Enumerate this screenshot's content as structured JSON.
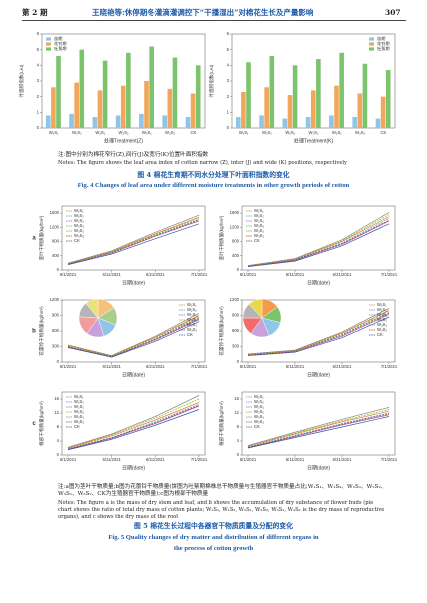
{
  "header": {
    "issue": "第 2 期",
    "title": "王晓艳等:休停期冬灌滴灌调控下“干播湿出”对棉花生长及产量影响",
    "page": "307"
  },
  "figure4": {
    "note_cn": "注:图中分别为棉花窄行(Z),间行(J)及宽行(K)位置叶面积指数",
    "note_en": "Notes: The figure shows the leaf area index of cotton narrow (Z), inter (J) and wide (K) positions, respectively",
    "caption_cn": "图 4   棉花生育期不同水分处理下叶面积指数的变化",
    "caption_en": "Fig. 4   Changes of leaf area under different moisture treatments in other growth periods of cotton"
  },
  "figure5": {
    "note_cn": "注:a图为茎叶干物质量;b图为花蕾铃干物质量(饼图为吐絮期棉株总干物质量与生殖器官干物质量占比;W₁S₁、W₁S₂、W₂S₁、W₂S₂、W₃S₁、W₃S₂、CK为生殖器官干物质量);c图为根部干物质量",
    "note_en": "Notes: The figure a is the mass of dry stem and leaf, and b shows the accumulation of dry substance of flower buds (pie chart shows the ratio of total dry mass of cotton plants; W₁S₁, W₁S₂, W₂S₁, W₂S₂, W₃S₁, W₃S₂ is the dry mass of reproductive organs), and c shows the dry mass of the root",
    "caption_cn": "图 5   棉花生长过程中各器官干物质质量及分配的变化",
    "caption_en_1": "Fig. 5   Quality changes of dry matter and distribution of different organs in",
    "caption_en_2": "the process of cotton growth"
  },
  "chart_data": [
    {
      "type": "bar",
      "ylabel": "叶面积指数(LAI)",
      "xlabel": "处理Treatment(Z)",
      "legend": "upper left",
      "categories": [
        "W₁S₁",
        "W₁S₂",
        "W₂S₁",
        "W₂S₂",
        "W₃S₁",
        "W₃S₂",
        "CK"
      ],
      "series": [
        {
          "name": "苗期",
          "color": "#8ec5e8",
          "values": [
            0.8,
            0.9,
            0.7,
            0.8,
            0.9,
            0.8,
            0.7
          ]
        },
        {
          "name": "花铃期",
          "color": "#f2a65a",
          "values": [
            2.6,
            2.9,
            2.4,
            2.7,
            3.0,
            2.5,
            2.2
          ]
        },
        {
          "name": "吐絮期",
          "color": "#7cc36e",
          "values": [
            4.6,
            5.0,
            4.3,
            4.8,
            5.2,
            4.5,
            4.0
          ]
        }
      ],
      "ylim": [
        0,
        6
      ],
      "yticks": [
        0,
        1,
        2,
        3,
        4,
        5,
        6
      ]
    },
    {
      "type": "bar",
      "ylabel": "叶面积指数(LAI)",
      "xlabel": "处理Treatment(K)",
      "legend": "upper right",
      "categories": [
        "W₁S₁",
        "W₁S₂",
        "W₂S₁",
        "W₂S₂",
        "W₃S₁",
        "W₃S₂",
        "CK"
      ],
      "series": [
        {
          "name": "苗期",
          "color": "#8ec5e8",
          "values": [
            0.7,
            0.8,
            0.6,
            0.7,
            0.8,
            0.7,
            0.6
          ]
        },
        {
          "name": "花铃期",
          "color": "#f2a65a",
          "values": [
            2.3,
            2.6,
            2.1,
            2.4,
            2.7,
            2.2,
            2.0
          ]
        },
        {
          "name": "吐絮期",
          "color": "#7cc36e",
          "values": [
            4.2,
            4.6,
            4.0,
            4.4,
            4.8,
            4.1,
            3.7
          ]
        }
      ],
      "ylim": [
        0,
        6
      ],
      "yticks": [
        0,
        1,
        2,
        3,
        4,
        5,
        6
      ]
    },
    {
      "type": "line",
      "panel": "a",
      "ylabel": "茎叶干物质量(kg/hm²)",
      "xlabel": "日期(date)",
      "legend": "upper left",
      "categories": [
        "6/1/2021",
        "6/11/2021",
        "6/21/2021",
        "7/1/2021"
      ],
      "series": [
        {
          "name": "W₁S₁",
          "color": "#e07b39",
          "values": [
            180,
            520,
            1020,
            1480
          ]
        },
        {
          "name": "W₁S₂",
          "color": "#4a90d9",
          "values": [
            170,
            500,
            980,
            1420
          ]
        },
        {
          "name": "W₂S₁",
          "color": "#9b59b6",
          "values": [
            160,
            480,
            950,
            1380
          ]
        },
        {
          "name": "W₂S₂",
          "color": "#7fb800",
          "values": [
            175,
            510,
            1000,
            1460
          ]
        },
        {
          "name": "W₃S₁",
          "color": "#888888",
          "values": [
            190,
            540,
            1060,
            1540
          ]
        },
        {
          "name": "W₃S₂",
          "color": "#c0392b",
          "values": [
            165,
            490,
            960,
            1400
          ]
        },
        {
          "name": "CK",
          "color": "#2c5aa0",
          "values": [
            150,
            450,
            880,
            1300
          ]
        }
      ],
      "ylim": [
        0,
        1800
      ],
      "yticks": [
        0,
        400,
        800,
        1200,
        1600
      ]
    },
    {
      "type": "line",
      "ylabel": "茎叶干物质量(kg/hm²)",
      "xlabel": "日期(date)",
      "legend": "upper left",
      "categories": [
        "6/1/2021",
        "6/11/2021",
        "6/21/2021",
        "7/1/2021"
      ],
      "series": [
        {
          "name": "W₁S₁",
          "color": "#e07b39",
          "values": [
            120,
            300,
            800,
            1500
          ]
        },
        {
          "name": "W₁S₂",
          "color": "#4a90d9",
          "values": [
            110,
            290,
            760,
            1450
          ]
        },
        {
          "name": "W₂S₁",
          "color": "#9b59b6",
          "values": [
            100,
            270,
            720,
            1380
          ]
        },
        {
          "name": "W₂S₂",
          "color": "#7fb800",
          "values": [
            115,
            310,
            820,
            1560
          ]
        },
        {
          "name": "W₃S₁",
          "color": "#888888",
          "values": [
            125,
            320,
            850,
            1620
          ]
        },
        {
          "name": "W₃S₂",
          "color": "#c0392b",
          "values": [
            105,
            280,
            740,
            1400
          ]
        },
        {
          "name": "CK",
          "color": "#2c5aa0",
          "values": [
            95,
            250,
            680,
            1300
          ]
        }
      ],
      "ylim": [
        0,
        1800
      ],
      "yticks": [
        0,
        400,
        800,
        1200,
        1600
      ]
    },
    {
      "type": "line",
      "panel": "b",
      "ylabel": "花蕾铃干物质量(kg/hm²)",
      "xlabel": "日期(date)",
      "legend": "upper right",
      "categories": [
        "6/1/2021",
        "6/11/2021",
        "6/21/2021",
        "7/1/2021"
      ],
      "series": [
        {
          "name": "W₁S₁",
          "color": "#e07b39",
          "values": [
            320,
            120,
            480,
            900
          ]
        },
        {
          "name": "W₁S₂",
          "color": "#4a90d9",
          "values": [
            300,
            110,
            450,
            860
          ]
        },
        {
          "name": "W₂S₁",
          "color": "#9b59b6",
          "values": [
            290,
            100,
            430,
            820
          ]
        },
        {
          "name": "W₂S₂",
          "color": "#7fb800",
          "values": [
            310,
            115,
            470,
            880
          ]
        },
        {
          "name": "W₃S₁",
          "color": "#888888",
          "values": [
            330,
            125,
            500,
            940
          ]
        },
        {
          "name": "W₃S₂",
          "color": "#c0392b",
          "values": [
            295,
            105,
            440,
            840
          ]
        },
        {
          "name": "CK",
          "color": "#2c5aa0",
          "values": [
            280,
            95,
            400,
            780
          ]
        }
      ],
      "ylim": [
        0,
        1200
      ],
      "yticks": [
        0,
        300,
        600,
        900,
        1200
      ]
    },
    {
      "type": "pie",
      "colors": [
        "#f4c27a",
        "#a8d08d",
        "#8ec5e8",
        "#c9a0dc",
        "#f29c9c",
        "#b5b5b5",
        "#e8e27a"
      ],
      "values": [
        16,
        15,
        14,
        15,
        16,
        13,
        11
      ]
    },
    {
      "type": "line",
      "ylabel": "花蕾铃干物质量(kg/hm²)",
      "xlabel": "日期(date)",
      "legend": "upper right",
      "categories": [
        "6/1/2021",
        "6/11/2021",
        "6/21/2021",
        "7/1/2021"
      ],
      "series": [
        {
          "name": "W₁S₁",
          "color": "#e07b39",
          "values": [
            150,
            220,
            560,
            1000
          ]
        },
        {
          "name": "W₁S₂",
          "color": "#4a90d9",
          "values": [
            140,
            210,
            530,
            960
          ]
        },
        {
          "name": "W₂S₁",
          "color": "#9b59b6",
          "values": [
            130,
            200,
            500,
            920
          ]
        },
        {
          "name": "W₂S₂",
          "color": "#7fb800",
          "values": [
            145,
            215,
            550,
            990
          ]
        },
        {
          "name": "W₃S₁",
          "color": "#888888",
          "values": [
            155,
            230,
            580,
            1040
          ]
        },
        {
          "name": "W₃S₂",
          "color": "#c0392b",
          "values": [
            135,
            205,
            520,
            940
          ]
        },
        {
          "name": "CK",
          "color": "#2c5aa0",
          "values": [
            125,
            190,
            470,
            870
          ]
        }
      ],
      "ylim": [
        0,
        1200
      ],
      "yticks": [
        0,
        300,
        600,
        900,
        1200
      ]
    },
    {
      "type": "pie",
      "colors": [
        "#f29c4a",
        "#7cc36e",
        "#8ec5e8",
        "#c9a0dc",
        "#f26c6c",
        "#b5b5b5",
        "#e8d84a"
      ],
      "values": [
        15,
        14,
        15,
        16,
        15,
        13,
        12
      ]
    },
    {
      "type": "line",
      "panel": "c",
      "ylabel": "根部干物质量(kg/hm²)",
      "xlabel": "日期(date)",
      "legend": "upper left",
      "categories": [
        "6/1/2021",
        "6/11/2021",
        "6/21/2021",
        "7/1/2021"
      ],
      "series": [
        {
          "name": "W₁S₁",
          "color": "#e07b39",
          "values": [
            2,
            5.5,
            10,
            15
          ]
        },
        {
          "name": "W₁S₂",
          "color": "#4a90d9",
          "values": [
            1.8,
            5,
            9.5,
            14.5
          ]
        },
        {
          "name": "W₂S₁",
          "color": "#9b59b6",
          "values": [
            1.6,
            4.8,
            9,
            14
          ]
        },
        {
          "name": "W₂S₂",
          "color": "#7fb800",
          "values": [
            2.1,
            5.8,
            10.5,
            16
          ]
        },
        {
          "name": "W₃S₁",
          "color": "#888888",
          "values": [
            2.2,
            6,
            11,
            17
          ]
        },
        {
          "name": "W₃S₂",
          "color": "#c0392b",
          "values": [
            1.7,
            4.9,
            9.2,
            14.2
          ]
        },
        {
          "name": "CK",
          "color": "#2c5aa0",
          "values": [
            1.5,
            4.5,
            8.5,
            13
          ]
        }
      ],
      "ylim": [
        0,
        18
      ],
      "yticks": [
        0,
        4,
        8,
        12,
        16
      ]
    },
    {
      "type": "line",
      "ylabel": "根部干物质量(kg/hm²)",
      "xlabel": "日期(date)",
      "legend": "upper left",
      "categories": [
        "6/1/2021",
        "6/11/2021",
        "6/21/2021",
        "7/1/2021"
      ],
      "series": [
        {
          "name": "W₁S₁",
          "color": "#e07b39",
          "values": [
            2.5,
            6,
            9.5,
            12.5
          ]
        },
        {
          "name": "W₁S₂",
          "color": "#4a90d9",
          "values": [
            2.3,
            5.6,
            9,
            12
          ]
        },
        {
          "name": "W₂S₁",
          "color": "#9b59b6",
          "values": [
            2.1,
            5.3,
            8.6,
            11.5
          ]
        },
        {
          "name": "W₂S₂",
          "color": "#7fb800",
          "values": [
            2.6,
            6.2,
            9.8,
            13
          ]
        },
        {
          "name": "W₃S₁",
          "color": "#888888",
          "values": [
            2.7,
            6.5,
            10.2,
            13.6
          ]
        },
        {
          "name": "W₃S₂",
          "color": "#c0392b",
          "values": [
            2.2,
            5.4,
            8.8,
            11.8
          ]
        },
        {
          "name": "CK",
          "color": "#2c5aa0",
          "values": [
            2,
            5,
            8,
            11
          ]
        }
      ],
      "ylim": [
        0,
        18
      ],
      "yticks": [
        0,
        4,
        8,
        12,
        16
      ]
    }
  ]
}
